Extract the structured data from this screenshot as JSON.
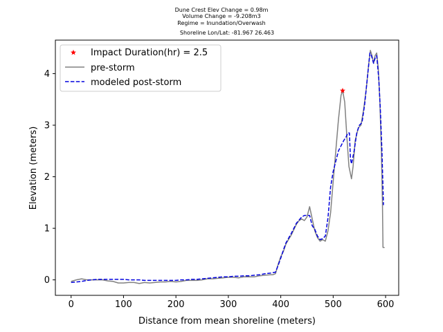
{
  "chart_data": {
    "type": "line",
    "title_lines": [
      "Dune Crest Elev Change = 0.98m",
      "Volume Change = -9.208m3",
      "Regime = Inundation/Overwash",
      "Shoreline Lon/Lat: -81.967 26.463"
    ],
    "xlabel": "Distance from mean shoreline (meters)",
    "ylabel": "Elevation (meters)",
    "xlim": [
      -30,
      625
    ],
    "ylim": [
      -0.3,
      4.65
    ],
    "xticks": [
      0,
      100,
      200,
      300,
      400,
      500,
      600
    ],
    "yticks": [
      0,
      1,
      2,
      3,
      4
    ],
    "legend_position": "upper-left",
    "series": [
      {
        "name": "pre-storm",
        "color": "#808080",
        "style": "solid",
        "points": [
          [
            0,
            -0.03
          ],
          [
            10,
            0.0
          ],
          [
            20,
            0.02
          ],
          [
            30,
            0.0
          ],
          [
            40,
            0.0
          ],
          [
            60,
            0.0
          ],
          [
            70,
            -0.02
          ],
          [
            80,
            -0.03
          ],
          [
            90,
            -0.06
          ],
          [
            100,
            -0.06
          ],
          [
            110,
            -0.05
          ],
          [
            120,
            -0.05
          ],
          [
            130,
            -0.07
          ],
          [
            140,
            -0.05
          ],
          [
            150,
            -0.06
          ],
          [
            160,
            -0.05
          ],
          [
            170,
            -0.04
          ],
          [
            180,
            -0.04
          ],
          [
            190,
            -0.03
          ],
          [
            200,
            -0.04
          ],
          [
            210,
            -0.03
          ],
          [
            220,
            -0.01
          ],
          [
            230,
            -0.01
          ],
          [
            240,
            -0.01
          ],
          [
            250,
            0.0
          ],
          [
            260,
            0.02
          ],
          [
            270,
            0.02
          ],
          [
            280,
            0.03
          ],
          [
            290,
            0.04
          ],
          [
            300,
            0.05
          ],
          [
            310,
            0.05
          ],
          [
            320,
            0.04
          ],
          [
            330,
            0.06
          ],
          [
            340,
            0.06
          ],
          [
            350,
            0.06
          ],
          [
            360,
            0.08
          ],
          [
            370,
            0.09
          ],
          [
            380,
            0.1
          ],
          [
            385,
            0.1
          ],
          [
            390,
            0.12
          ],
          [
            395,
            0.3
          ],
          [
            400,
            0.45
          ],
          [
            405,
            0.55
          ],
          [
            410,
            0.7
          ],
          [
            420,
            0.87
          ],
          [
            430,
            1.08
          ],
          [
            435,
            1.15
          ],
          [
            440,
            1.18
          ],
          [
            445,
            1.15
          ],
          [
            450,
            1.22
          ],
          [
            455,
            1.42
          ],
          [
            460,
            1.18
          ],
          [
            465,
            0.95
          ],
          [
            470,
            0.82
          ],
          [
            475,
            0.75
          ],
          [
            480,
            0.78
          ],
          [
            485,
            0.75
          ],
          [
            490,
            0.95
          ],
          [
            495,
            1.3
          ],
          [
            500,
            1.9
          ],
          [
            505,
            2.5
          ],
          [
            510,
            3.1
          ],
          [
            515,
            3.58
          ],
          [
            518,
            3.67
          ],
          [
            522,
            3.45
          ],
          [
            526,
            2.8
          ],
          [
            530,
            2.2
          ],
          [
            535,
            1.96
          ],
          [
            538,
            2.2
          ],
          [
            542,
            2.7
          ],
          [
            548,
            2.95
          ],
          [
            553,
            3.0
          ],
          [
            558,
            3.3
          ],
          [
            563,
            3.7
          ],
          [
            568,
            4.2
          ],
          [
            571,
            4.45
          ],
          [
            574,
            4.35
          ],
          [
            577,
            4.2
          ],
          [
            580,
            4.35
          ],
          [
            583,
            4.4
          ],
          [
            586,
            4.1
          ],
          [
            589,
            3.5
          ],
          [
            592,
            2.5
          ],
          [
            594,
            1.5
          ],
          [
            595,
            0.63
          ],
          [
            598,
            0.63
          ]
        ]
      },
      {
        "name": "modeled post-storm",
        "color": "#0000dd",
        "style": "dashed",
        "points": [
          [
            0,
            -0.05
          ],
          [
            10,
            -0.04
          ],
          [
            20,
            -0.03
          ],
          [
            30,
            -0.01
          ],
          [
            40,
            0.0
          ],
          [
            50,
            0.01
          ],
          [
            60,
            0.01
          ],
          [
            70,
            0.01
          ],
          [
            80,
            0.01
          ],
          [
            90,
            0.01
          ],
          [
            100,
            0.01
          ],
          [
            110,
            0.0
          ],
          [
            120,
            0.0
          ],
          [
            130,
            0.0
          ],
          [
            140,
            -0.01
          ],
          [
            150,
            -0.01
          ],
          [
            160,
            -0.01
          ],
          [
            170,
            -0.01
          ],
          [
            180,
            -0.01
          ],
          [
            190,
            -0.01
          ],
          [
            200,
            -0.01
          ],
          [
            210,
            0.0
          ],
          [
            220,
            0.0
          ],
          [
            230,
            0.01
          ],
          [
            240,
            0.01
          ],
          [
            250,
            0.02
          ],
          [
            260,
            0.03
          ],
          [
            270,
            0.04
          ],
          [
            280,
            0.05
          ],
          [
            290,
            0.06
          ],
          [
            300,
            0.06
          ],
          [
            310,
            0.07
          ],
          [
            320,
            0.07
          ],
          [
            330,
            0.08
          ],
          [
            340,
            0.08
          ],
          [
            350,
            0.09
          ],
          [
            360,
            0.1
          ],
          [
            370,
            0.12
          ],
          [
            380,
            0.13
          ],
          [
            390,
            0.15
          ],
          [
            395,
            0.28
          ],
          [
            400,
            0.42
          ],
          [
            405,
            0.58
          ],
          [
            410,
            0.72
          ],
          [
            420,
            0.9
          ],
          [
            430,
            1.1
          ],
          [
            440,
            1.22
          ],
          [
            445,
            1.25
          ],
          [
            450,
            1.25
          ],
          [
            455,
            1.25
          ],
          [
            460,
            1.05
          ],
          [
            465,
            0.98
          ],
          [
            470,
            0.85
          ],
          [
            475,
            0.78
          ],
          [
            480,
            0.8
          ],
          [
            485,
            0.85
          ],
          [
            490,
            1.2
          ],
          [
            495,
            1.8
          ],
          [
            500,
            2.1
          ],
          [
            505,
            2.3
          ],
          [
            510,
            2.5
          ],
          [
            515,
            2.6
          ],
          [
            520,
            2.7
          ],
          [
            525,
            2.78
          ],
          [
            528,
            2.85
          ],
          [
            531,
            2.85
          ],
          [
            533,
            2.35
          ],
          [
            535,
            2.25
          ],
          [
            540,
            2.5
          ],
          [
            545,
            2.85
          ],
          [
            550,
            3.0
          ],
          [
            555,
            3.05
          ],
          [
            560,
            3.4
          ],
          [
            565,
            3.9
          ],
          [
            570,
            4.4
          ],
          [
            573,
            4.35
          ],
          [
            577,
            4.2
          ],
          [
            580,
            4.3
          ],
          [
            583,
            4.35
          ],
          [
            587,
            3.9
          ],
          [
            590,
            3.3
          ],
          [
            593,
            2.5
          ],
          [
            596,
            1.45
          ]
        ]
      }
    ],
    "markers": [
      {
        "name": "Impact Duration(hr) = 2.5",
        "x": 518,
        "y": 3.67,
        "color": "#ff0000",
        "symbol": "star"
      }
    ]
  }
}
